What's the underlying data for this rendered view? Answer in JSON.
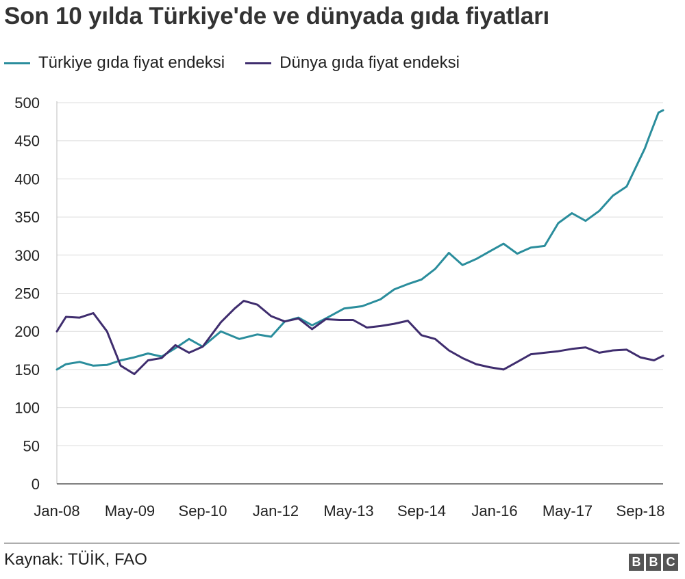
{
  "title": "Son 10 yılda Türkiye'de ve dünyada gıda fiyatları",
  "source": "Kaynak: TÜİK, FAO",
  "logo": [
    "B",
    "B",
    "C"
  ],
  "chart_data": {
    "type": "line",
    "ylim": [
      0,
      500
    ],
    "yticks": [
      0,
      50,
      100,
      150,
      200,
      250,
      300,
      350,
      400,
      450,
      500
    ],
    "xticks": [
      "Jan-08",
      "May-09",
      "Sep-10",
      "Jan-12",
      "May-13",
      "Sep-14",
      "Jan-16",
      "May-17",
      "Sep-18"
    ],
    "grid": true,
    "legend_position": "top-left",
    "series": [
      {
        "name": "Türkiye gıda fiyat endeksi",
        "color": "#2a8d9c",
        "points": [
          [
            "2008-01",
            150
          ],
          [
            "2008-03",
            157
          ],
          [
            "2008-06",
            160
          ],
          [
            "2008-09",
            155
          ],
          [
            "2008-12",
            156
          ],
          [
            "2009-03",
            162
          ],
          [
            "2009-06",
            166
          ],
          [
            "2009-09",
            171
          ],
          [
            "2009-12",
            167
          ],
          [
            "2010-03",
            178
          ],
          [
            "2010-06",
            190
          ],
          [
            "2010-09",
            180
          ],
          [
            "2011-01",
            200
          ],
          [
            "2011-05",
            190
          ],
          [
            "2011-09",
            196
          ],
          [
            "2011-12",
            193
          ],
          [
            "2012-03",
            213
          ],
          [
            "2012-06",
            218
          ],
          [
            "2012-09",
            208
          ],
          [
            "2012-12",
            217
          ],
          [
            "2013-04",
            230
          ],
          [
            "2013-08",
            233
          ],
          [
            "2013-12",
            242
          ],
          [
            "2014-03",
            255
          ],
          [
            "2014-06",
            262
          ],
          [
            "2014-09",
            268
          ],
          [
            "2014-12",
            282
          ],
          [
            "2015-03",
            303
          ],
          [
            "2015-06",
            287
          ],
          [
            "2015-09",
            295
          ],
          [
            "2015-12",
            305
          ],
          [
            "2016-03",
            315
          ],
          [
            "2016-06",
            302
          ],
          [
            "2016-09",
            310
          ],
          [
            "2016-12",
            312
          ],
          [
            "2017-03",
            342
          ],
          [
            "2017-06",
            355
          ],
          [
            "2017-09",
            345
          ],
          [
            "2017-12",
            358
          ],
          [
            "2018-03",
            378
          ],
          [
            "2018-06",
            390
          ],
          [
            "2018-08",
            415
          ],
          [
            "2018-10",
            440
          ],
          [
            "2018-11",
            456
          ],
          [
            "2019-01",
            487
          ],
          [
            "2019-02",
            490
          ]
        ]
      },
      {
        "name": "Dünya gıda fiyat endeksi",
        "color": "#3f2d6e",
        "points": [
          [
            "2008-01",
            200
          ],
          [
            "2008-03",
            219
          ],
          [
            "2008-06",
            218
          ],
          [
            "2008-09",
            224
          ],
          [
            "2008-12",
            200
          ],
          [
            "2009-03",
            155
          ],
          [
            "2009-06",
            144
          ],
          [
            "2009-09",
            162
          ],
          [
            "2009-12",
            165
          ],
          [
            "2010-03",
            182
          ],
          [
            "2010-06",
            172
          ],
          [
            "2010-09",
            180
          ],
          [
            "2011-01",
            212
          ],
          [
            "2011-04",
            230
          ],
          [
            "2011-06",
            240
          ],
          [
            "2011-09",
            235
          ],
          [
            "2011-12",
            220
          ],
          [
            "2012-03",
            213
          ],
          [
            "2012-06",
            217
          ],
          [
            "2012-09",
            203
          ],
          [
            "2012-12",
            216
          ],
          [
            "2013-03",
            215
          ],
          [
            "2013-06",
            215
          ],
          [
            "2013-09",
            205
          ],
          [
            "2013-12",
            207
          ],
          [
            "2014-03",
            210
          ],
          [
            "2014-06",
            214
          ],
          [
            "2014-09",
            195
          ],
          [
            "2014-12",
            190
          ],
          [
            "2015-03",
            175
          ],
          [
            "2015-06",
            165
          ],
          [
            "2015-09",
            157
          ],
          [
            "2015-12",
            153
          ],
          [
            "2016-03",
            150
          ],
          [
            "2016-06",
            160
          ],
          [
            "2016-09",
            170
          ],
          [
            "2016-12",
            172
          ],
          [
            "2017-03",
            174
          ],
          [
            "2017-06",
            177
          ],
          [
            "2017-09",
            179
          ],
          [
            "2017-12",
            172
          ],
          [
            "2018-03",
            175
          ],
          [
            "2018-06",
            176
          ],
          [
            "2018-09",
            166
          ],
          [
            "2018-12",
            162
          ],
          [
            "2019-02",
            168
          ]
        ]
      }
    ]
  }
}
